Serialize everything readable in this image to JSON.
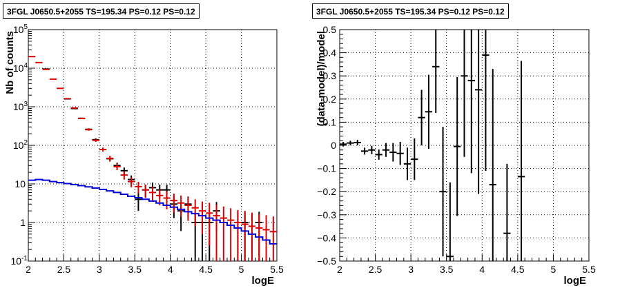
{
  "panels": [
    {
      "title": "3FGL J0650.5+2055 TS=195.34 PS=0.12 PS=0.12",
      "chart_data": {
        "type": "scatter",
        "xlabel": "logE",
        "ylabel": "Nb of counts",
        "xlim": [
          2,
          5.5
        ],
        "ylim": [
          0.1,
          100000
        ],
        "yscale": "log",
        "grid": true,
        "xticks": [
          "2",
          "2.5",
          "3",
          "3.5",
          "4",
          "4.5",
          "5",
          "5.5"
        ],
        "yticks": [
          {
            "value": 0.1,
            "label": "10",
            "exp": "-1"
          },
          {
            "value": 1,
            "label": "1",
            "exp": ""
          },
          {
            "value": 10,
            "label": "10",
            "exp": ""
          },
          {
            "value": 100,
            "label": "10",
            "exp": "2"
          },
          {
            "value": 1000,
            "label": "10",
            "exp": "3"
          },
          {
            "value": 10000,
            "label": "10",
            "exp": "4"
          },
          {
            "value": 100000,
            "label": "10",
            "exp": "5"
          }
        ],
        "bin_width": 0.1,
        "series": [
          {
            "color": "#000000",
            "x": [
              2.25,
              2.55,
              2.65,
              2.75,
              2.85,
              2.95,
              3.05,
              3.15,
              3.25,
              3.35,
              3.45,
              3.55,
              3.65,
              3.75,
              3.85,
              3.95,
              4.05,
              4.15,
              4.25,
              4.35,
              4.45,
              4.55,
              4.65,
              4.95,
              5.05,
              5.25
            ],
            "y": [
              9500,
              1600,
              900,
              500,
              260,
              140,
              78,
              45,
              30,
              22,
              13,
              4,
              7,
              8,
              7,
              7,
              3,
              2,
              3,
              1,
              1,
              1,
              2,
              1,
              1,
              1
            ],
            "err_lo": [
              100,
              40,
              30,
              22,
              16,
              12,
              9,
              7,
              5.5,
              4.7,
              3.6,
              2,
              2.6,
              2.8,
              2.6,
              2.6,
              1.7,
              1.4,
              1.7,
              0.9,
              0.9,
              0.9,
              1.4,
              0.9,
              0.9,
              0.9
            ],
            "err_hi": [
              100,
              40,
              30,
              22,
              16,
              12,
              9,
              7,
              5.5,
              4.7,
              3.6,
              2,
              2.6,
              2.8,
              2.6,
              2.6,
              1.7,
              1.4,
              1.7,
              0.9,
              0.9,
              0.9,
              1.4,
              0.9,
              0.9,
              0.9
            ]
          },
          {
            "color": "#dd0000",
            "x": [
              2.05,
              2.15,
              2.25,
              2.35,
              2.45,
              2.55,
              2.65,
              2.75,
              2.85,
              2.95,
              3.05,
              3.15,
              3.25,
              3.35,
              3.45,
              3.55,
              3.65,
              3.75,
              3.85,
              3.95,
              4.05,
              4.15,
              4.25,
              4.35,
              4.45,
              4.55,
              4.65,
              4.75,
              4.85,
              4.95,
              5.05,
              5.15,
              5.25,
              5.35,
              5.45
            ],
            "y": [
              20000,
              14000,
              9300,
              5200,
              3000,
              1620,
              930,
              500,
              255,
              135,
              78,
              46,
              28,
              17,
              11.5,
              8.5,
              7,
              6,
              5,
              4.3,
              3.7,
              3.2,
              2.8,
              2.4,
              2.0,
              1.75,
              1.5,
              1.3,
              1.15,
              1.0,
              0.9,
              0.8,
              0.72,
              0.65,
              0.58
            ],
            "err_lo": [
              140,
              118,
              96,
              72,
              55,
              40,
              30,
              22,
              16,
              12,
              9,
              7,
              5.3,
              4.1,
              3.4,
              2.9,
              2.6,
              2.4,
              2.2,
              2.1,
              1.9,
              1.8,
              1.7,
              1.6,
              1.5,
              1.5,
              1.4,
              1.3,
              1.15,
              1.0,
              0.9,
              0.8,
              0.72,
              0.65,
              0.58
            ],
            "err_hi": [
              140,
              118,
              96,
              72,
              55,
              40,
              30,
              22,
              16,
              12,
              9,
              7,
              5.3,
              4.1,
              3.4,
              2.9,
              2.6,
              2.4,
              2.2,
              2.1,
              1.9,
              1.8,
              1.7,
              1.6,
              1.5,
              1.5,
              1.4,
              1.3,
              1.2,
              1.1,
              1.1,
              1.0,
              0.95,
              0.9,
              0.85
            ]
          },
          {
            "color": "#0000dd",
            "type": "step",
            "x": [
              2.05,
              2.15,
              2.25,
              2.35,
              2.45,
              2.55,
              2.65,
              2.75,
              2.85,
              2.95,
              3.05,
              3.15,
              3.25,
              3.35,
              3.45,
              3.55,
              3.65,
              3.75,
              3.85,
              3.95,
              4.05,
              4.15,
              4.25,
              4.35,
              4.45,
              4.55,
              4.65,
              4.75,
              4.85,
              4.95,
              5.05,
              5.15,
              5.25,
              5.35,
              5.45
            ],
            "y": [
              12.5,
              13,
              12.5,
              11.5,
              10.8,
              10.2,
              9.6,
              9,
              8.4,
              7.8,
              7.2,
              6.6,
              6,
              5.4,
              4.8,
              4.4,
              4,
              3.6,
              3.2,
              2.8,
              2.5,
              2.2,
              1.9,
              1.7,
              1.5,
              1.3,
              1.15,
              1.0,
              0.85,
              0.72,
              0.6,
              0.5,
              0.42,
              0.35,
              0.28
            ]
          }
        ]
      }
    },
    {
      "title": "3FGL J0650.5+2055 TS=195.34 PS=0.12 PS=0.12",
      "chart_data": {
        "type": "scatter",
        "xlabel": "logE",
        "ylabel": "(data-model)/model",
        "xlim": [
          2,
          5.5
        ],
        "ylim": [
          -0.5,
          0.5
        ],
        "grid": true,
        "xticks": [
          "2",
          "2.5",
          "3",
          "3.5",
          "4",
          "4.5",
          "5",
          "5.5"
        ],
        "yticks": [
          "−0.5",
          "−0.4",
          "−0.3",
          "−0.2",
          "−0.1",
          "0",
          "0.1",
          "0.2",
          "0.3",
          "0.4",
          "0.5"
        ],
        "bin_width": 0.1,
        "series": [
          {
            "color": "#000000",
            "x": [
              2.05,
              2.15,
              2.25,
              2.35,
              2.45,
              2.55,
              2.65,
              2.75,
              2.85,
              2.95,
              3.05,
              3.15,
              3.25,
              3.35,
              3.45,
              3.55,
              3.65,
              3.75,
              3.85,
              3.95,
              4.05,
              4.15,
              4.35,
              4.55
            ],
            "y": [
              0.005,
              0.01,
              0.012,
              -0.025,
              -0.02,
              -0.04,
              -0.02,
              -0.03,
              -0.035,
              -0.08,
              -0.06,
              0.12,
              0.145,
              0.34,
              -0.2,
              -0.48,
              -0.005,
              0.3,
              0.28,
              0.24,
              0.39,
              -0.17,
              -0.38,
              -0.135
            ],
            "err_lo": [
              0.01,
              0.01,
              0.012,
              0.015,
              0.018,
              0.022,
              0.03,
              0.04,
              0.05,
              0.07,
              0.09,
              0.12,
              0.16,
              0.2,
              0.28,
              0.2,
              0.3,
              0.35,
              0.4,
              0.45,
              0.5,
              0.5,
              0.3,
              0.5
            ],
            "err_hi": [
              0.01,
              0.01,
              0.012,
              0.015,
              0.018,
              0.022,
              0.03,
              0.04,
              0.05,
              0.07,
              0.09,
              0.12,
              0.16,
              0.2,
              0.28,
              0.32,
              0.3,
              0.35,
              0.4,
              0.45,
              0.5,
              0.5,
              0.3,
              0.5
            ]
          }
        ]
      }
    }
  ]
}
